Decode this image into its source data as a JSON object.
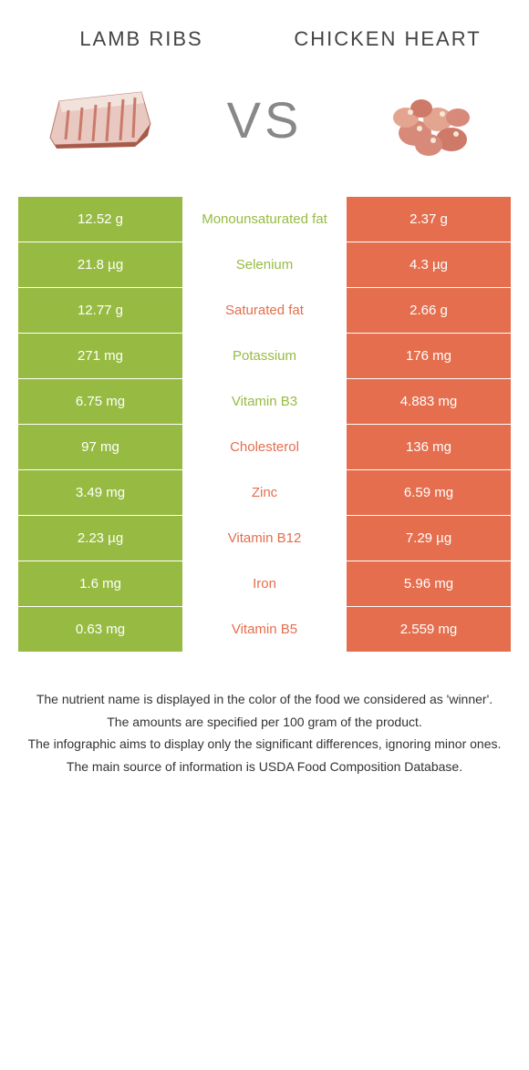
{
  "colors": {
    "green": "#97bb42",
    "orange": "#e46e4d",
    "mid_bg": "#ffffff",
    "text_dark": "#333333"
  },
  "header": {
    "left_title": "Lamb ribs",
    "right_title": "Chicken heart",
    "vs": "VS"
  },
  "food_illustrations": {
    "left_alt": "lamb-ribs-illustration",
    "right_alt": "chicken-heart-illustration"
  },
  "rows": [
    {
      "left": "12.52 g",
      "mid": "Monounsaturated fat",
      "right": "2.37 g",
      "winner": "left"
    },
    {
      "left": "21.8 µg",
      "mid": "Selenium",
      "right": "4.3 µg",
      "winner": "left"
    },
    {
      "left": "12.77 g",
      "mid": "Saturated fat",
      "right": "2.66 g",
      "winner": "right"
    },
    {
      "left": "271 mg",
      "mid": "Potassium",
      "right": "176 mg",
      "winner": "left"
    },
    {
      "left": "6.75 mg",
      "mid": "Vitamin B3",
      "right": "4.883 mg",
      "winner": "left"
    },
    {
      "left": "97 mg",
      "mid": "Cholesterol",
      "right": "136 mg",
      "winner": "right"
    },
    {
      "left": "3.49 mg",
      "mid": "Zinc",
      "right": "6.59 mg",
      "winner": "right"
    },
    {
      "left": "2.23 µg",
      "mid": "Vitamin B12",
      "right": "7.29 µg",
      "winner": "right"
    },
    {
      "left": "1.6 mg",
      "mid": "Iron",
      "right": "5.96 mg",
      "winner": "right"
    },
    {
      "left": "0.63 mg",
      "mid": "Vitamin B5",
      "right": "2.559 mg",
      "winner": "right"
    }
  ],
  "footer": {
    "line1": "The nutrient name is displayed in the color of the food we considered as 'winner'.",
    "line2": "The amounts are specified per 100 gram of the product.",
    "line3": "The infographic aims to display only the significant differences, ignoring minor ones.",
    "line4": "The main source of information is USDA Food Composition Database."
  }
}
